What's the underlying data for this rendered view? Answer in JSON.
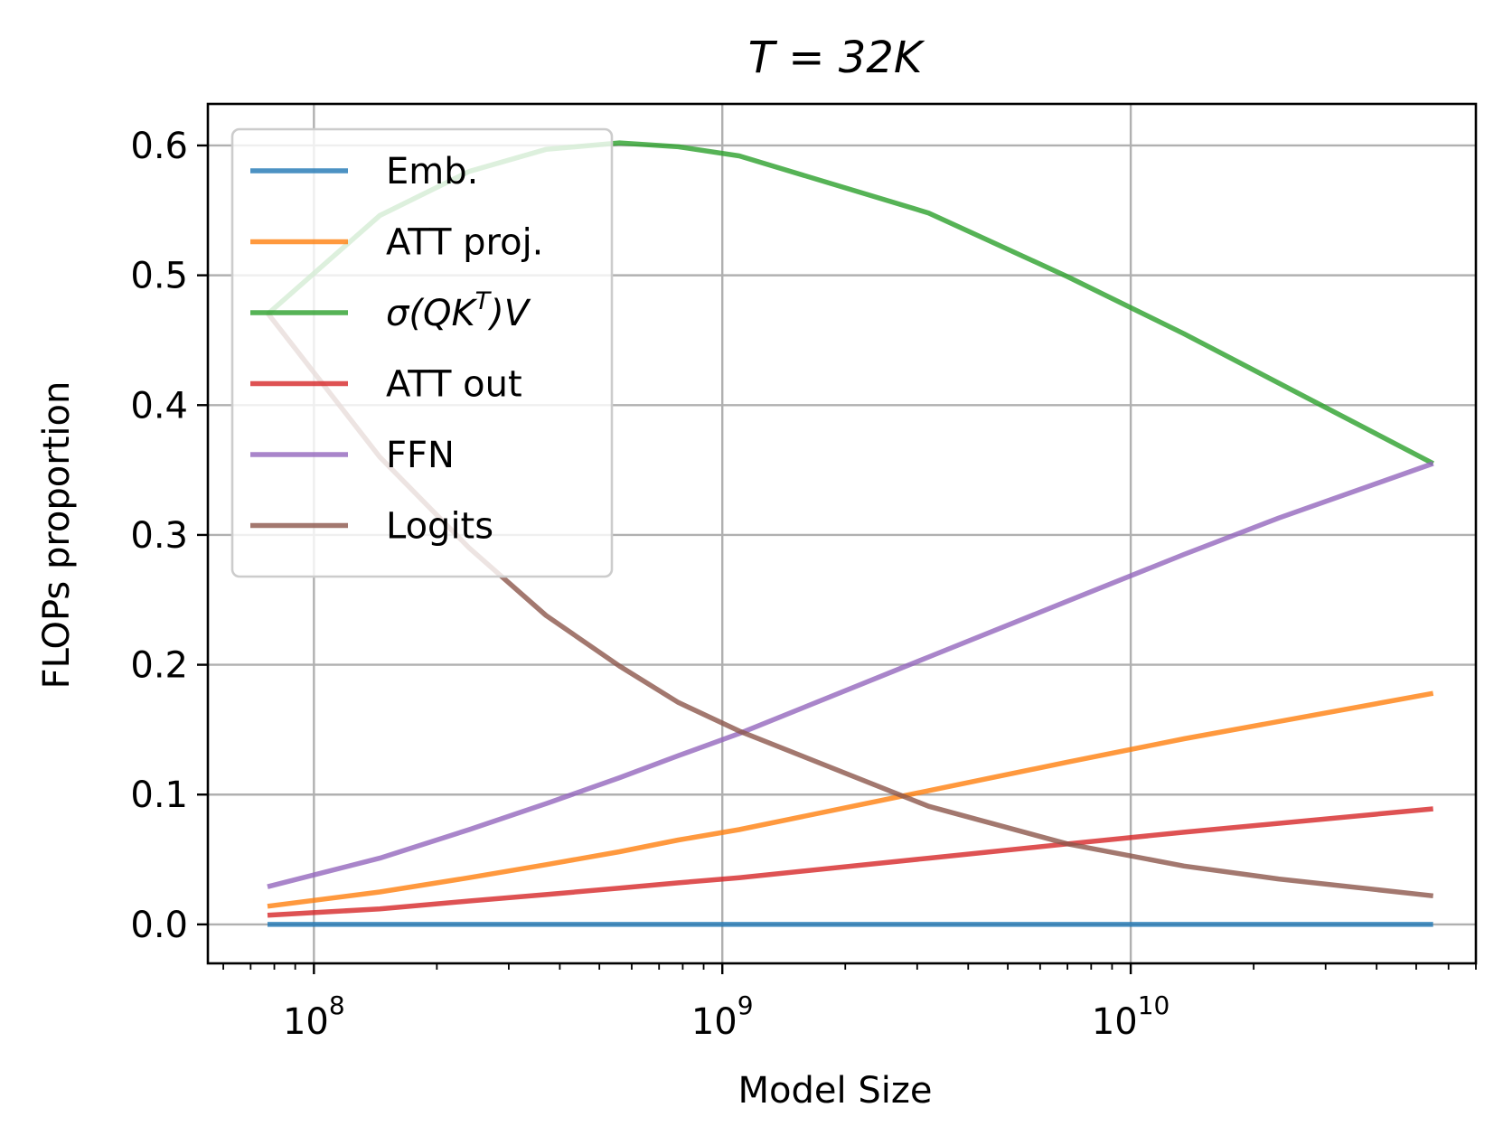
{
  "chart_data": {
    "type": "line",
    "title": "T = 32K",
    "xlabel": "Model Size",
    "ylabel": "FLOPs proportion",
    "xscale": "log",
    "xlim": [
      55000000.0,
      70000000000.0
    ],
    "ylim": [
      -0.03,
      0.632
    ],
    "xticks": [
      {
        "value": 100000000.0,
        "base": "10",
        "exp": "8"
      },
      {
        "value": 1000000000.0,
        "base": "10",
        "exp": "9"
      },
      {
        "value": 10000000000.0,
        "base": "10",
        "exp": "10"
      }
    ],
    "yticks": [
      {
        "value": 0.0,
        "label": "0.0"
      },
      {
        "value": 0.1,
        "label": "0.1"
      },
      {
        "value": 0.2,
        "label": "0.2"
      },
      {
        "value": 0.3,
        "label": "0.3"
      },
      {
        "value": 0.4,
        "label": "0.4"
      },
      {
        "value": 0.5,
        "label": "0.5"
      },
      {
        "value": 0.6,
        "label": "0.6"
      }
    ],
    "grid": true,
    "legend_position": "top-left",
    "series": [
      {
        "name": "Emb.",
        "name_html": "Emb.",
        "color": "#1f77b4",
        "x": [
          77000000.0,
          55000000000.0
        ],
        "y": [
          0.0,
          0.0
        ]
      },
      {
        "name": "ATT proj.",
        "name_html": "ATT proj.",
        "color": "#ff7f0e",
        "x": [
          77000000.0,
          145000000.0,
          240000000.0,
          370000000.0,
          560000000.0,
          780000000.0,
          1100000000.0,
          3200000000.0,
          7000000000.0,
          13500000000.0,
          55000000000.0
        ],
        "y": [
          0.014,
          0.025,
          0.036,
          0.046,
          0.056,
          0.065,
          0.073,
          0.103,
          0.125,
          0.143,
          0.178
        ]
      },
      {
        "name": "σ(QK^T)V",
        "name_html": "σ(QK<tspan baseline-shift=\"super\" font-size=\"28\">T</tspan>)V",
        "color": "#2ca02c",
        "x": [
          77000000.0,
          145000000.0,
          240000000.0,
          370000000.0,
          560000000.0,
          780000000.0,
          1100000000.0,
          3200000000.0,
          7000000000.0,
          13500000000.0,
          55000000000.0
        ],
        "y": [
          0.47,
          0.546,
          0.58,
          0.597,
          0.602,
          0.599,
          0.592,
          0.548,
          0.499,
          0.455,
          0.355
        ]
      },
      {
        "name": "ATT out",
        "name_html": "ATT out",
        "color": "#d62728",
        "x": [
          77000000.0,
          145000000.0,
          240000000.0,
          370000000.0,
          560000000.0,
          780000000.0,
          1100000000.0,
          3200000000.0,
          7000000000.0,
          13500000000.0,
          55000000000.0
        ],
        "y": [
          0.007,
          0.012,
          0.018,
          0.023,
          0.028,
          0.032,
          0.036,
          0.051,
          0.062,
          0.071,
          0.089
        ]
      },
      {
        "name": "FFN",
        "name_html": "FFN",
        "color": "#9467bd",
        "x": [
          77000000.0,
          145000000.0,
          240000000.0,
          370000000.0,
          560000000.0,
          780000000.0,
          1100000000.0,
          3200000000.0,
          7000000000.0,
          13500000000.0,
          23000000000.0,
          55000000000.0
        ],
        "y": [
          0.029,
          0.051,
          0.073,
          0.093,
          0.113,
          0.13,
          0.147,
          0.206,
          0.249,
          0.285,
          0.313,
          0.355
        ]
      },
      {
        "name": "Logits",
        "name_html": "Logits",
        "color": "#8c564b",
        "x": [
          77000000.0,
          145000000.0,
          240000000.0,
          370000000.0,
          560000000.0,
          780000000.0,
          1100000000.0,
          3200000000.0,
          7000000000.0,
          13500000000.0,
          23000000000.0,
          55000000000.0
        ],
        "y": [
          0.471,
          0.36,
          0.29,
          0.238,
          0.199,
          0.171,
          0.149,
          0.091,
          0.062,
          0.045,
          0.035,
          0.022
        ]
      }
    ]
  }
}
